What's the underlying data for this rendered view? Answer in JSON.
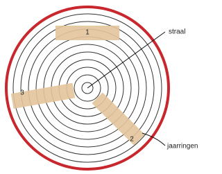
{
  "segments": [
    {
      "label": "1"
    },
    {
      "label": "2"
    },
    {
      "label": "3"
    }
  ],
  "labels": {
    "radius": "straal",
    "rings": "jaarringen"
  }
}
